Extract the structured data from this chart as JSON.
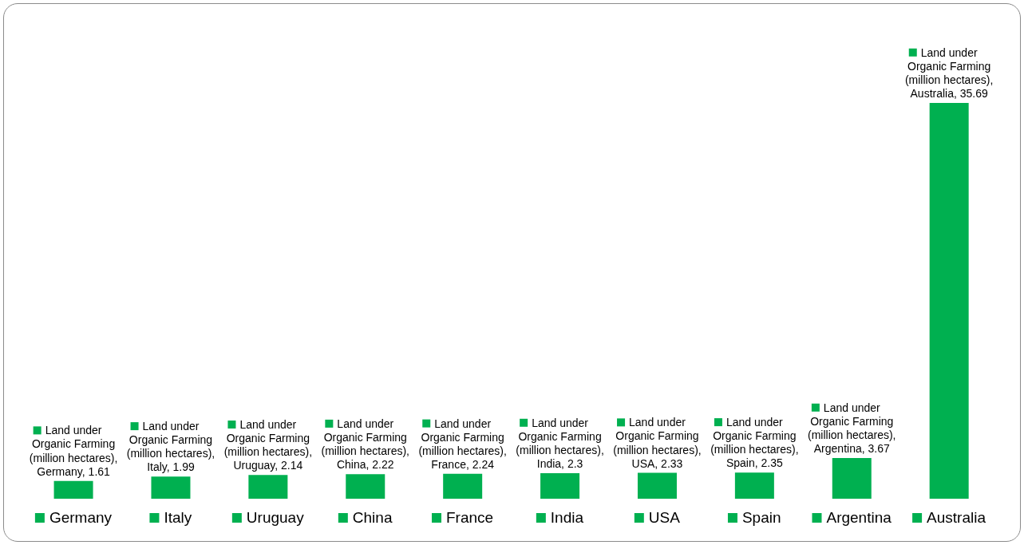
{
  "chart_data": {
    "type": "bar",
    "categories": [
      "Germany",
      "Italy",
      "Uruguay",
      "China",
      "France",
      "India",
      "USA",
      "Spain",
      "Argentina",
      "Australia"
    ],
    "series": [
      {
        "color": "#00b050",
        "values": [
          1.61,
          1.99,
          2.14,
          2.22,
          2.24,
          2.3,
          2.33,
          2.35,
          3.67,
          35.69
        ],
        "value_labels": [
          "Land under Organic Farming (million hectares), Germany, 1.61",
          "Land under Organic Farming (million hectares), Italy, 1.99",
          "Land under Organic Farming (million hectares), Uruguay, 2.14",
          "Land under Organic Farming (million hectares), China, 2.22",
          "Land under Organic Farming (million hectares), France, 2.24",
          "Land under Organic Farming (million hectares), India, 2.3",
          "Land under Organic Farming (million hectares), USA, 2.33",
          "Land under Organic Farming (million hectares), Spain, 2.35",
          "Land under Organic Farming (million hectares), Argentina, 3.67",
          "Land under Organic Farming (million hectares), Australia, 35.69"
        ]
      }
    ],
    "tick_labels": "x"
  }
}
